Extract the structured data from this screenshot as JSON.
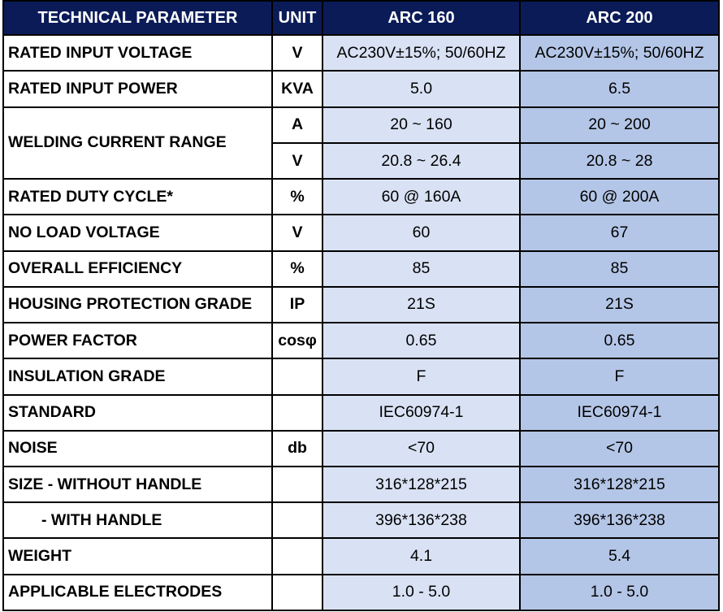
{
  "header": {
    "parameter": "TECHNICAL PARAMETER",
    "unit": "UNIT",
    "model1": "ARC 160",
    "model2": "ARC 200"
  },
  "rows": [
    {
      "param": "RATED INPUT VOLTAGE",
      "unit": "V",
      "v1": "AC230V±15%; 50/60HZ",
      "v2": "AC230V±15%; 50/60HZ"
    },
    {
      "param": "RATED INPUT POWER",
      "unit": "KVA",
      "v1": "5.0",
      "v2": "6.5"
    },
    {
      "param": "WELDING CURRENT RANGE",
      "unit": "A",
      "v1": "20 ~ 160",
      "v2": "20 ~ 200"
    },
    {
      "param": "",
      "unit": "V",
      "v1": "20.8 ~ 26.4",
      "v2": "20.8 ~ 28"
    },
    {
      "param": "RATED DUTY CYCLE*",
      "unit": "%",
      "v1": "60 @ 160A",
      "v2": "60 @ 200A"
    },
    {
      "param": "NO LOAD VOLTAGE",
      "unit": "V",
      "v1": "60",
      "v2": "67"
    },
    {
      "param": "OVERALL EFFICIENCY",
      "unit": "%",
      "v1": "85",
      "v2": "85"
    },
    {
      "param": "HOUSING PROTECTION GRADE",
      "unit": "IP",
      "v1": "21S",
      "v2": "21S"
    },
    {
      "param": "POWER FACTOR",
      "unit": "cosφ",
      "v1": "0.65",
      "v2": "0.65"
    },
    {
      "param": "INSULATION GRADE",
      "unit": "",
      "v1": "F",
      "v2": "F"
    },
    {
      "param": "STANDARD",
      "unit": "",
      "v1": "IEC60974-1",
      "v2": "IEC60974-1"
    },
    {
      "param": "NOISE",
      "unit": "db",
      "v1": "<70",
      "v2": "<70"
    },
    {
      "param": "SIZE - WITHOUT HANDLE",
      "unit": "",
      "v1": "316*128*215",
      "v2": "316*128*215"
    },
    {
      "param": "- WITH HANDLE",
      "unit": "",
      "v1": "396*136*238",
      "v2": "396*136*238"
    },
    {
      "param": "WEIGHT",
      "unit": "",
      "v1": "4.1",
      "v2": "5.4"
    },
    {
      "param": "APPLICABLE ELECTRODES",
      "unit": "",
      "v1": "1.0 - 5.0",
      "v2": "1.0 - 5.0"
    }
  ],
  "colors": {
    "header_bg": "#0b1b58",
    "header_text": "#ffffff",
    "model1_bg": "#d9e2f4",
    "model2_bg": "#b4c6e7"
  }
}
